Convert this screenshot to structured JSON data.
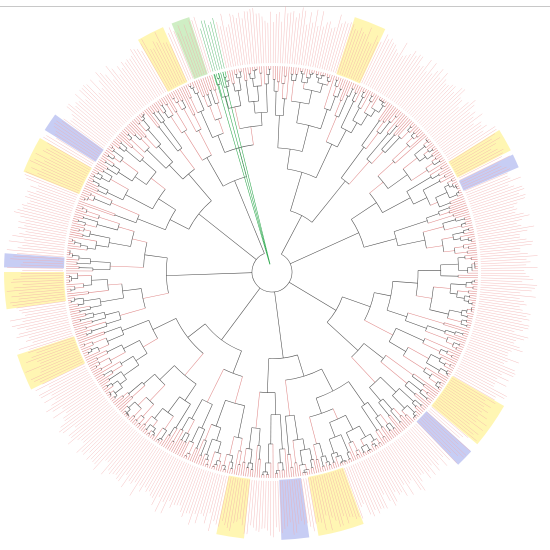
{
  "figure": {
    "type": "circular phylogenetic tree",
    "labels_legible": false,
    "background": "#ffffff"
  },
  "colors": {
    "internal_branch": "#4d4d4d",
    "clade_red": "#e08a8a",
    "clade_green": "#2fa84f",
    "tip_label_red": "#f2aaaa",
    "highlight_yellow": "#fff6b3",
    "highlight_blue": "#c7cdf4",
    "highlight_green": "#cfeec4",
    "top_rule": "#c8c8c8"
  },
  "highlight_wedges": [
    {
      "color": "yellow",
      "from_deg": 18,
      "to_deg": 25
    },
    {
      "color": "yellow",
      "from_deg": 58,
      "to_deg": 63
    },
    {
      "color": "blue",
      "from_deg": 64,
      "to_deg": 67
    },
    {
      "color": "yellow",
      "from_deg": 120,
      "to_deg": 130
    },
    {
      "color": "blue",
      "from_deg": 132,
      "to_deg": 136
    },
    {
      "color": "yellow",
      "from_deg": 160,
      "to_deg": 170
    },
    {
      "color": "blue",
      "from_deg": 172,
      "to_deg": 178
    },
    {
      "color": "yellow",
      "from_deg": 186,
      "to_deg": 192
    },
    {
      "color": "yellow",
      "from_deg": 244,
      "to_deg": 252
    },
    {
      "color": "yellow",
      "from_deg": 262,
      "to_deg": 270
    },
    {
      "color": "blue",
      "from_deg": 271,
      "to_deg": 274
    },
    {
      "color": "yellow",
      "from_deg": 292,
      "to_deg": 300
    },
    {
      "color": "blue",
      "from_deg": 302,
      "to_deg": 306
    },
    {
      "color": "yellow",
      "from_deg": 330,
      "to_deg": 336
    },
    {
      "color": "green",
      "from_deg": 338,
      "to_deg": 342
    }
  ],
  "highlighted_clade": {
    "color": "green",
    "from_deg": 343,
    "to_deg": 347
  }
}
